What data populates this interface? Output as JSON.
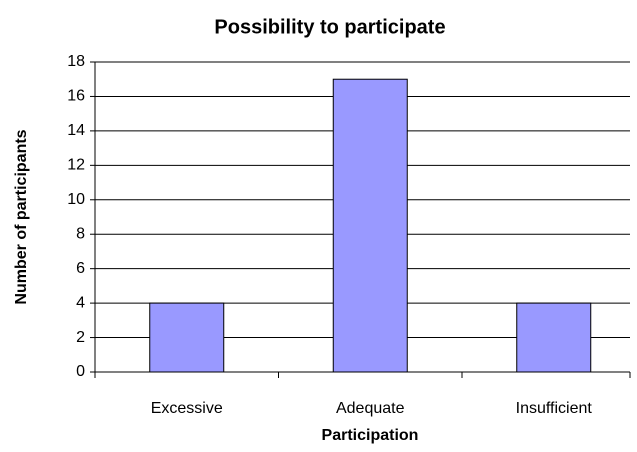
{
  "chart_data": {
    "type": "bar",
    "title": "Possibility to participate",
    "x_label": "Participation",
    "y_label": "Number of participants",
    "categories": [
      "Excessive",
      "Adequate",
      "Insufficient"
    ],
    "values": [
      4,
      17,
      4
    ],
    "color": "#9999ff",
    "ylim": [
      0,
      18
    ],
    "yticks": [
      0,
      2,
      4,
      6,
      8,
      10,
      12,
      14,
      16,
      18
    ],
    "grid": true
  }
}
